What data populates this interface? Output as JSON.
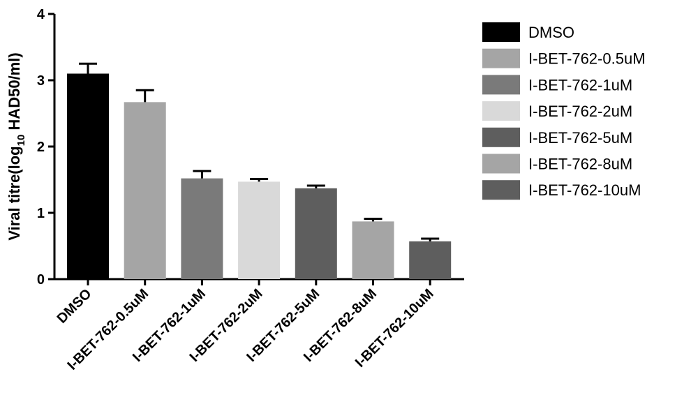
{
  "chart_data": {
    "type": "bar",
    "categories": [
      "DMSO",
      "I-BET-762-0.5uM",
      "I-BET-762-1uM",
      "I-BET-762-2uM",
      "I-BET-762-5uM",
      "I-BET-762-8uM",
      "I-BET-762-10uM"
    ],
    "values": [
      3.1,
      2.67,
      1.52,
      1.47,
      1.37,
      0.87,
      0.57
    ],
    "errors": [
      0.15,
      0.18,
      0.11,
      0.04,
      0.04,
      0.04,
      0.04
    ],
    "colors": [
      "#000000",
      "#a5a5a5",
      "#7a7a7a",
      "#d9d9d9",
      "#5e5e5e",
      "#a5a5a5",
      "#5e5e5e"
    ],
    "ylabel_parts": [
      "Viral titre(log",
      "10",
      " HAD50/ml)"
    ],
    "ylim": [
      0,
      4
    ],
    "yticks": [
      "0",
      "1",
      "2",
      "3",
      "4"
    ],
    "legend": {
      "position": "right",
      "entries": [
        "DMSO",
        "I-BET-762-0.5uM",
        "I-BET-762-1uM",
        "I-BET-762-2uM",
        "I-BET-762-5uM",
        "I-BET-762-8uM",
        "I-BET-762-10uM"
      ]
    },
    "grid": false
  }
}
